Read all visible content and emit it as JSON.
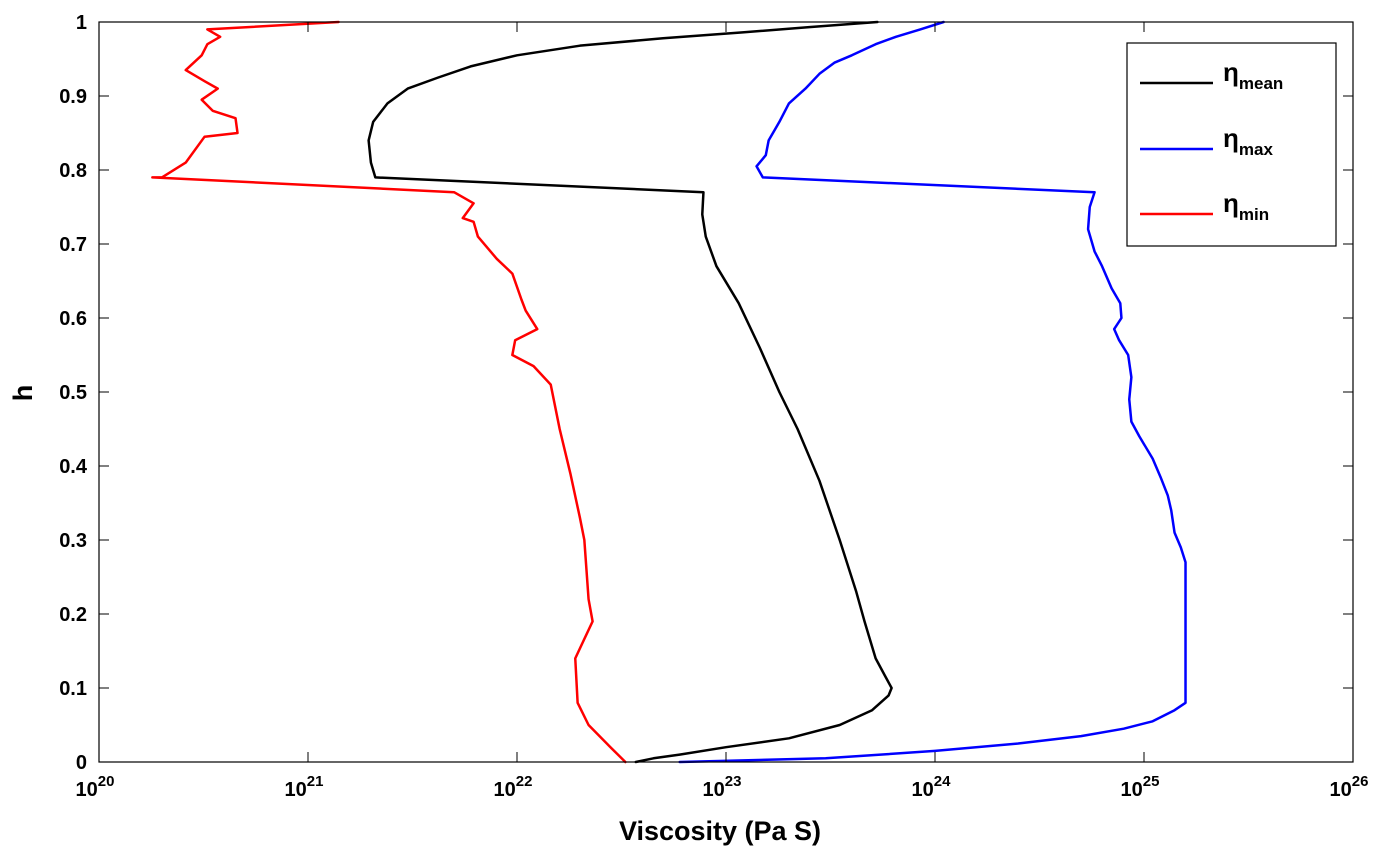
{
  "chart_data": {
    "type": "line",
    "title": "",
    "xlabel": "Viscosity (Pa S)",
    "ylabel": "h",
    "x_scale": "log",
    "xlim": [
      1e+20,
      1e+26
    ],
    "ylim": [
      0,
      1
    ],
    "x_ticks": [
      {
        "value": 1e+20,
        "base": "10",
        "exp": "20"
      },
      {
        "value": 1e+21,
        "base": "10",
        "exp": "21"
      },
      {
        "value": 1e+22,
        "base": "10",
        "exp": "22"
      },
      {
        "value": 1e+23,
        "base": "10",
        "exp": "23"
      },
      {
        "value": 1e+24,
        "base": "10",
        "exp": "24"
      },
      {
        "value": 1e+25,
        "base": "10",
        "exp": "25"
      },
      {
        "value": 1e+26,
        "base": "10",
        "exp": "26"
      }
    ],
    "y_ticks": [
      {
        "value": 0,
        "label": "0"
      },
      {
        "value": 0.1,
        "label": "0.1"
      },
      {
        "value": 0.2,
        "label": "0.2"
      },
      {
        "value": 0.3,
        "label": "0.3"
      },
      {
        "value": 0.4,
        "label": "0.4"
      },
      {
        "value": 0.5,
        "label": "0.5"
      },
      {
        "value": 0.6,
        "label": "0.6"
      },
      {
        "value": 0.7,
        "label": "0.7"
      },
      {
        "value": 0.8,
        "label": "0.8"
      },
      {
        "value": 0.9,
        "label": "0.9"
      },
      {
        "value": 1,
        "label": "1"
      }
    ],
    "grid": false,
    "legend_position": "top-right",
    "series": [
      {
        "name": "η",
        "subscript": "mean",
        "color": "#000000",
        "points": [
          {
            "x": 3.7e+22,
            "y": 0.0
          },
          {
            "x": 4.5e+22,
            "y": 0.005
          },
          {
            "x": 6e+22,
            "y": 0.01
          },
          {
            "x": 1e+23,
            "y": 0.02
          },
          {
            "x": 2e+23,
            "y": 0.032
          },
          {
            "x": 3.5e+23,
            "y": 0.05
          },
          {
            "x": 5e+23,
            "y": 0.07
          },
          {
            "x": 6e+23,
            "y": 0.09
          },
          {
            "x": 6.2e+23,
            "y": 0.1
          },
          {
            "x": 5.8e+23,
            "y": 0.115
          },
          {
            "x": 5.2e+23,
            "y": 0.14
          },
          {
            "x": 4.6e+23,
            "y": 0.19
          },
          {
            "x": 4.2e+23,
            "y": 0.23
          },
          {
            "x": 3.5e+23,
            "y": 0.3
          },
          {
            "x": 2.8e+23,
            "y": 0.38
          },
          {
            "x": 2.2e+23,
            "y": 0.45
          },
          {
            "x": 1.8e+23,
            "y": 0.5
          },
          {
            "x": 1.45e+23,
            "y": 0.56
          },
          {
            "x": 1.15e+23,
            "y": 0.62
          },
          {
            "x": 9e+22,
            "y": 0.67
          },
          {
            "x": 8e+22,
            "y": 0.71
          },
          {
            "x": 7.7e+22,
            "y": 0.74
          },
          {
            "x": 7.8e+22,
            "y": 0.77
          },
          {
            "x": 2.1e+21,
            "y": 0.79
          },
          {
            "x": 2e+21,
            "y": 0.81
          },
          {
            "x": 1.95e+21,
            "y": 0.84
          },
          {
            "x": 2.05e+21,
            "y": 0.865
          },
          {
            "x": 2.4e+21,
            "y": 0.89
          },
          {
            "x": 3e+21,
            "y": 0.91
          },
          {
            "x": 4.2e+21,
            "y": 0.925
          },
          {
            "x": 6e+21,
            "y": 0.94
          },
          {
            "x": 1e+22,
            "y": 0.955
          },
          {
            "x": 2e+22,
            "y": 0.968
          },
          {
            "x": 5e+22,
            "y": 0.978
          },
          {
            "x": 1.2e+23,
            "y": 0.986
          },
          {
            "x": 2.5e+23,
            "y": 0.993
          },
          {
            "x": 5.3e+23,
            "y": 1.0
          }
        ]
      },
      {
        "name": "η",
        "subscript": "max",
        "color": "#0000ff",
        "points": [
          {
            "x": 6e+22,
            "y": 0.0
          },
          {
            "x": 3e+23,
            "y": 0.005
          },
          {
            "x": 1e+24,
            "y": 0.015
          },
          {
            "x": 2.5e+24,
            "y": 0.025
          },
          {
            "x": 5e+24,
            "y": 0.035
          },
          {
            "x": 8e+24,
            "y": 0.045
          },
          {
            "x": 1.1e+25,
            "y": 0.055
          },
          {
            "x": 1.4e+25,
            "y": 0.07
          },
          {
            "x": 1.58e+25,
            "y": 0.08
          },
          {
            "x": 1.58e+25,
            "y": 0.15
          },
          {
            "x": 1.58e+25,
            "y": 0.27
          },
          {
            "x": 1.5e+25,
            "y": 0.29
          },
          {
            "x": 1.4e+25,
            "y": 0.31
          },
          {
            "x": 1.35e+25,
            "y": 0.34
          },
          {
            "x": 1.3e+25,
            "y": 0.36
          },
          {
            "x": 1.2e+25,
            "y": 0.385
          },
          {
            "x": 1.1e+25,
            "y": 0.41
          },
          {
            "x": 9.5e+24,
            "y": 0.44
          },
          {
            "x": 8.7e+24,
            "y": 0.46
          },
          {
            "x": 8.5e+24,
            "y": 0.49
          },
          {
            "x": 8.7e+24,
            "y": 0.52
          },
          {
            "x": 8.4e+24,
            "y": 0.55
          },
          {
            "x": 7.6e+24,
            "y": 0.57
          },
          {
            "x": 7.2e+24,
            "y": 0.585
          },
          {
            "x": 7.8e+24,
            "y": 0.6
          },
          {
            "x": 7.7e+24,
            "y": 0.62
          },
          {
            "x": 7e+24,
            "y": 0.64
          },
          {
            "x": 6.3e+24,
            "y": 0.67
          },
          {
            "x": 5.8e+24,
            "y": 0.69
          },
          {
            "x": 5.4e+24,
            "y": 0.72
          },
          {
            "x": 5.5e+24,
            "y": 0.75
          },
          {
            "x": 5.8e+24,
            "y": 0.77
          },
          {
            "x": 1.5e+23,
            "y": 0.79
          },
          {
            "x": 1.4e+23,
            "y": 0.805
          },
          {
            "x": 1.55e+23,
            "y": 0.82
          },
          {
            "x": 1.6e+23,
            "y": 0.84
          },
          {
            "x": 1.8e+23,
            "y": 0.865
          },
          {
            "x": 2e+23,
            "y": 0.89
          },
          {
            "x": 2.4e+23,
            "y": 0.91
          },
          {
            "x": 2.8e+23,
            "y": 0.93
          },
          {
            "x": 3.3e+23,
            "y": 0.945
          },
          {
            "x": 4e+23,
            "y": 0.955
          },
          {
            "x": 5.2e+23,
            "y": 0.97
          },
          {
            "x": 6.5e+23,
            "y": 0.98
          },
          {
            "x": 8.5e+23,
            "y": 0.99
          },
          {
            "x": 1.1e+24,
            "y": 1.0
          }
        ]
      },
      {
        "name": "η",
        "subscript": "min",
        "color": "#ff0000",
        "points": [
          {
            "x": 3.3e+22,
            "y": 0.0
          },
          {
            "x": 2.8e+22,
            "y": 0.02
          },
          {
            "x": 2.2e+22,
            "y": 0.05
          },
          {
            "x": 1.95e+22,
            "y": 0.08
          },
          {
            "x": 1.9e+22,
            "y": 0.14
          },
          {
            "x": 2.05e+22,
            "y": 0.16
          },
          {
            "x": 2.3e+22,
            "y": 0.19
          },
          {
            "x": 2.2e+22,
            "y": 0.22
          },
          {
            "x": 2.1e+22,
            "y": 0.3
          },
          {
            "x": 2e+22,
            "y": 0.33
          },
          {
            "x": 1.8e+22,
            "y": 0.39
          },
          {
            "x": 1.6e+22,
            "y": 0.45
          },
          {
            "x": 1.45e+22,
            "y": 0.51
          },
          {
            "x": 1.2e+22,
            "y": 0.535
          },
          {
            "x": 9.5e+21,
            "y": 0.55
          },
          {
            "x": 9.8e+21,
            "y": 0.57
          },
          {
            "x": 1.25e+22,
            "y": 0.585
          },
          {
            "x": 1.1e+22,
            "y": 0.61
          },
          {
            "x": 1.05e+22,
            "y": 0.625
          },
          {
            "x": 9.5e+21,
            "y": 0.66
          },
          {
            "x": 8e+21,
            "y": 0.68
          },
          {
            "x": 6.5e+21,
            "y": 0.71
          },
          {
            "x": 6.2e+21,
            "y": 0.73
          },
          {
            "x": 5.5e+21,
            "y": 0.735
          },
          {
            "x": 6.2e+21,
            "y": 0.755
          },
          {
            "x": 5e+21,
            "y": 0.77
          },
          {
            "x": 1.8e+20,
            "y": 0.79
          },
          {
            "x": 2e+20,
            "y": 0.79
          },
          {
            "x": 2.6e+20,
            "y": 0.81
          },
          {
            "x": 3.2e+20,
            "y": 0.845
          },
          {
            "x": 4.6e+20,
            "y": 0.85
          },
          {
            "x": 4.5e+20,
            "y": 0.87
          },
          {
            "x": 3.5e+20,
            "y": 0.88
          },
          {
            "x": 3.1e+20,
            "y": 0.895
          },
          {
            "x": 3.7e+20,
            "y": 0.91
          },
          {
            "x": 3.2e+20,
            "y": 0.92
          },
          {
            "x": 2.6e+20,
            "y": 0.935
          },
          {
            "x": 3.1e+20,
            "y": 0.955
          },
          {
            "x": 3.3e+20,
            "y": 0.97
          },
          {
            "x": 3.8e+20,
            "y": 0.98
          },
          {
            "x": 3.3e+20,
            "y": 0.99
          },
          {
            "x": 1.4e+21,
            "y": 1.0
          }
        ]
      }
    ]
  }
}
